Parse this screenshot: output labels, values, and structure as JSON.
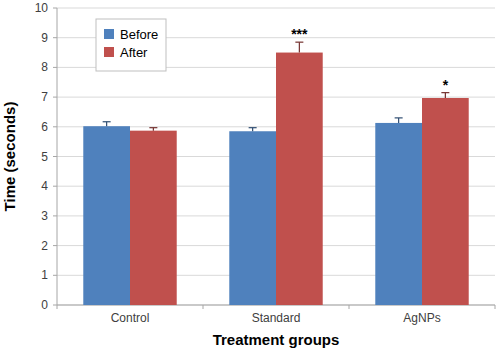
{
  "chart_data": {
    "type": "bar",
    "x_label": "Treatment groups",
    "y_label": "Time (seconds)",
    "categories": [
      "Control",
      "Standard",
      "AgNPs"
    ],
    "series": [
      {
        "name": "Before",
        "color": "#4f81bd",
        "values": [
          6.02,
          5.85,
          6.13
        ],
        "errors": [
          0.15,
          0.12,
          0.17
        ]
      },
      {
        "name": "After",
        "color": "#c0504d",
        "values": [
          5.87,
          8.5,
          6.97
        ],
        "errors": [
          0.1,
          0.35,
          0.18
        ],
        "significance": [
          null,
          "***",
          "*"
        ]
      }
    ],
    "ylim": [
      0,
      10
    ],
    "yticks": [
      0,
      1,
      2,
      3,
      4,
      5,
      6,
      7,
      8,
      9,
      10
    ],
    "grid": true,
    "legend": "upper left"
  }
}
